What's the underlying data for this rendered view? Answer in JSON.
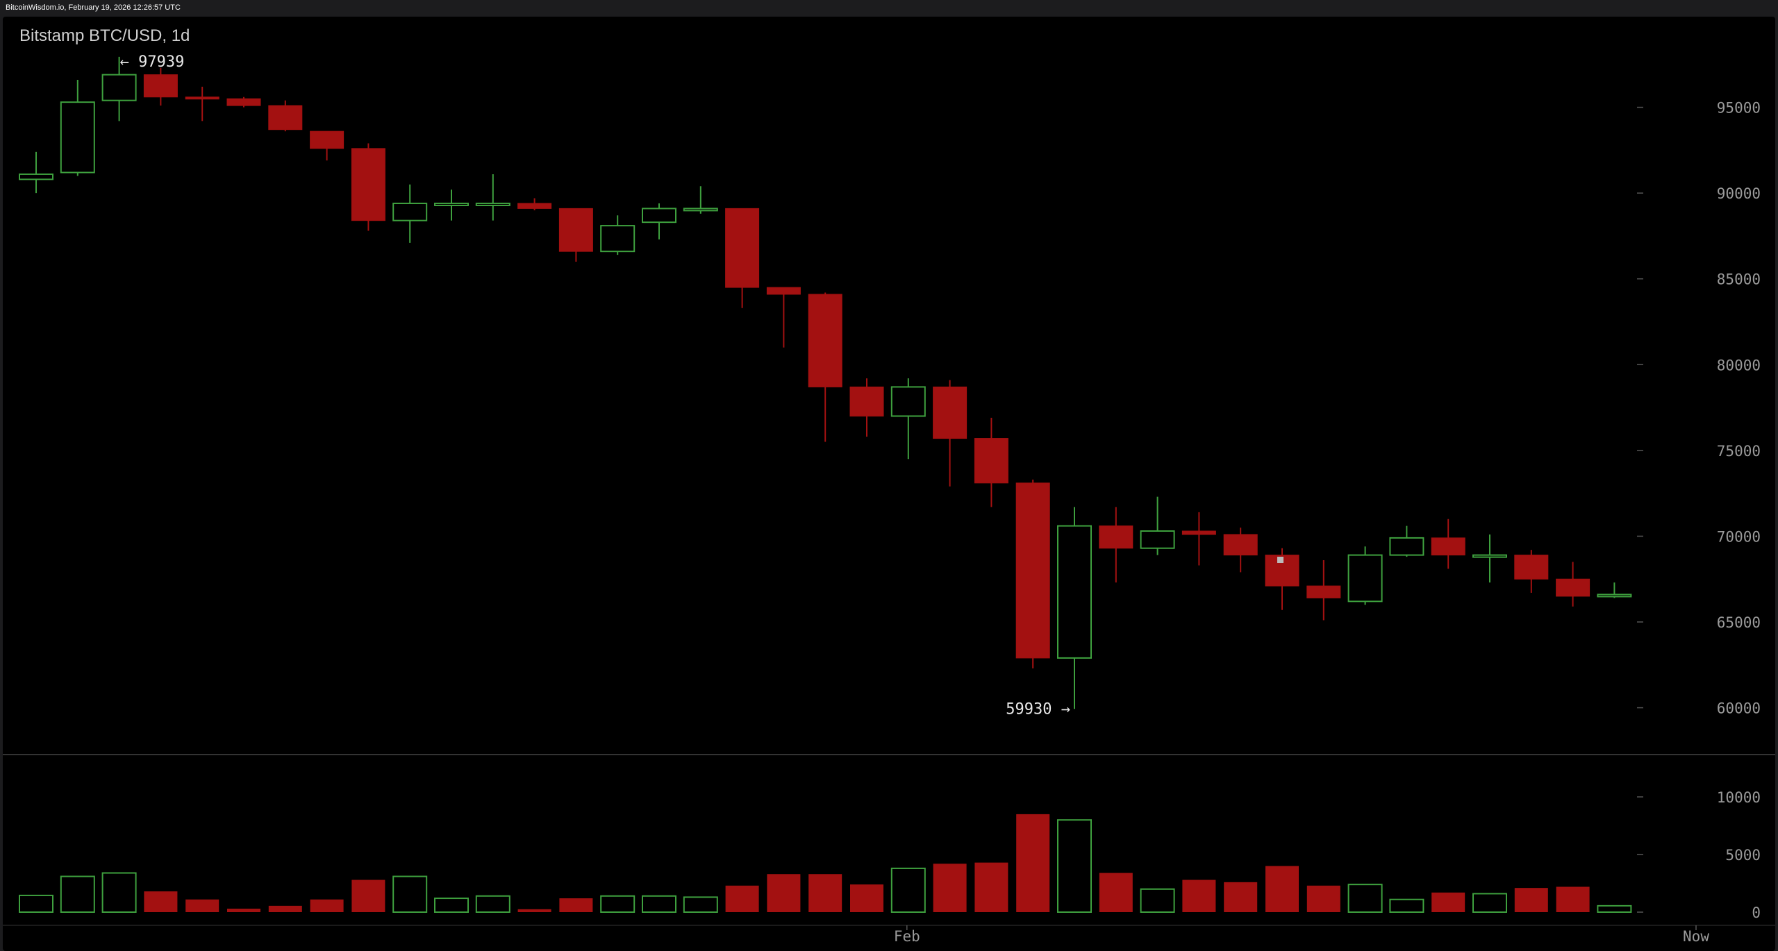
{
  "header": {
    "source_text": "BitcoinWisdom.io, February 19, 2026 12:26:57 UTC"
  },
  "chart_data": {
    "type": "candlestick",
    "title": "Bitstamp BTC/USD, 1d",
    "colors": {
      "up": "#3ea03e",
      "down": "#a31111",
      "axis_text": "#9a9a9a",
      "background": "#000000"
    },
    "price_axis": {
      "ticks": [
        60000,
        65000,
        70000,
        75000,
        80000,
        85000,
        90000,
        95000
      ],
      "range": [
        58000,
        100000
      ]
    },
    "volume_axis": {
      "ticks": [
        0,
        5000,
        10000
      ],
      "range": [
        0,
        13000
      ]
    },
    "x_axis": {
      "labels": [
        {
          "text": "Feb",
          "index": 21
        },
        {
          "text": "Now",
          "index": 40
        }
      ]
    },
    "annotations": {
      "high": {
        "text": "← 97939",
        "index": 2,
        "value": 97939
      },
      "low": {
        "text": "59930 →",
        "index": 25,
        "value": 59930
      }
    },
    "candles": [
      {
        "o": 90800,
        "h": 92400,
        "l": 90000,
        "c": 91100,
        "v": 1450
      },
      {
        "o": 91200,
        "h": 96600,
        "l": 91000,
        "c": 95300,
        "v": 3100
      },
      {
        "o": 95400,
        "h": 97939,
        "l": 94200,
        "c": 96900,
        "v": 3400
      },
      {
        "o": 96900,
        "h": 97300,
        "l": 95100,
        "c": 95600,
        "v": 1800
      },
      {
        "o": 95600,
        "h": 96200,
        "l": 94200,
        "c": 95500,
        "v": 1100
      },
      {
        "o": 95500,
        "h": 95600,
        "l": 95000,
        "c": 95100,
        "v": 300
      },
      {
        "o": 95100,
        "h": 95400,
        "l": 93600,
        "c": 93700,
        "v": 550
      },
      {
        "o": 93600,
        "h": 93600,
        "l": 91900,
        "c": 92600,
        "v": 1100
      },
      {
        "o": 92600,
        "h": 92900,
        "l": 87800,
        "c": 88400,
        "v": 2800
      },
      {
        "o": 88400,
        "h": 90500,
        "l": 87100,
        "c": 89400,
        "v": 3100
      },
      {
        "o": 89400,
        "h": 90200,
        "l": 88400,
        "c": 89400,
        "v": 1200
      },
      {
        "o": 89400,
        "h": 91100,
        "l": 88400,
        "c": 89400,
        "v": 1400
      },
      {
        "o": 89400,
        "h": 89700,
        "l": 89000,
        "c": 89100,
        "v": 250
      },
      {
        "o": 89100,
        "h": 89100,
        "l": 86000,
        "c": 86600,
        "v": 1200
      },
      {
        "o": 86600,
        "h": 88700,
        "l": 86400,
        "c": 88100,
        "v": 1400
      },
      {
        "o": 88300,
        "h": 89400,
        "l": 87300,
        "c": 89100,
        "v": 1400
      },
      {
        "o": 89100,
        "h": 90400,
        "l": 88800,
        "c": 89100,
        "v": 1300
      },
      {
        "o": 89100,
        "h": 89100,
        "l": 83300,
        "c": 84500,
        "v": 2300
      },
      {
        "o": 84500,
        "h": 84500,
        "l": 81000,
        "c": 84100,
        "v": 3300
      },
      {
        "o": 84100,
        "h": 84200,
        "l": 75500,
        "c": 78700,
        "v": 3300
      },
      {
        "o": 78700,
        "h": 79200,
        "l": 75800,
        "c": 77000,
        "v": 2400
      },
      {
        "o": 77000,
        "h": 79200,
        "l": 74500,
        "c": 78700,
        "v": 3800
      },
      {
        "o": 78700,
        "h": 79100,
        "l": 72900,
        "c": 75700,
        "v": 4200
      },
      {
        "o": 75700,
        "h": 76900,
        "l": 71700,
        "c": 73100,
        "v": 4300
      },
      {
        "o": 73100,
        "h": 73300,
        "l": 62300,
        "c": 62900,
        "v": 8500
      },
      {
        "o": 62900,
        "h": 71700,
        "l": 59930,
        "c": 70600,
        "v": 8000
      },
      {
        "o": 70600,
        "h": 71700,
        "l": 67300,
        "c": 69300,
        "v": 3400
      },
      {
        "o": 69300,
        "h": 72300,
        "l": 68900,
        "c": 70300,
        "v": 2000
      },
      {
        "o": 70300,
        "h": 71400,
        "l": 68300,
        "c": 70100,
        "v": 2800
      },
      {
        "o": 70100,
        "h": 70500,
        "l": 67900,
        "c": 68900,
        "v": 2600
      },
      {
        "o": 68900,
        "h": 69300,
        "l": 65700,
        "c": 67100,
        "v": 4000
      },
      {
        "o": 67100,
        "h": 68600,
        "l": 65100,
        "c": 66400,
        "v": 2300
      },
      {
        "o": 66200,
        "h": 69400,
        "l": 66000,
        "c": 68900,
        "v": 2400
      },
      {
        "o": 68900,
        "h": 70600,
        "l": 68800,
        "c": 69900,
        "v": 1100
      },
      {
        "o": 69900,
        "h": 71000,
        "l": 68100,
        "c": 68900,
        "v": 1700
      },
      {
        "o": 68900,
        "h": 70100,
        "l": 67300,
        "c": 68900,
        "v": 1600
      },
      {
        "o": 68900,
        "h": 69200,
        "l": 66700,
        "c": 67500,
        "v": 2100
      },
      {
        "o": 67500,
        "h": 68500,
        "l": 65900,
        "c": 66500,
        "v": 2200
      },
      {
        "o": 66500,
        "h": 67300,
        "l": 66400,
        "c": 66600,
        "v": 550
      }
    ]
  }
}
